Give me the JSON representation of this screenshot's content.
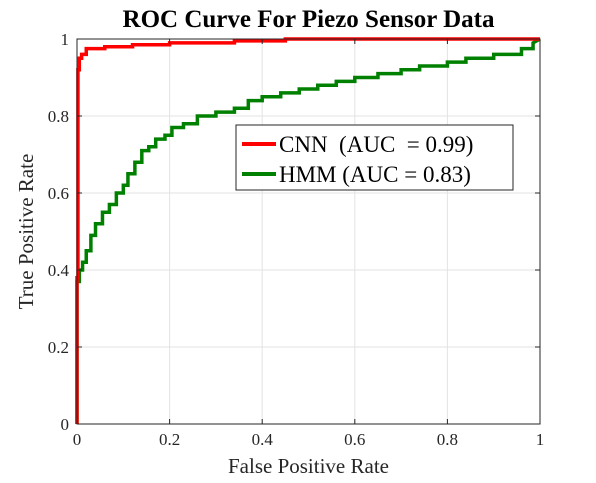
{
  "chart_data": {
    "type": "line",
    "title": "ROC Curve For Piezo Sensor Data",
    "xlabel": "False Positive Rate",
    "ylabel": "True Positive Rate",
    "xlim": [
      0,
      1
    ],
    "ylim": [
      0,
      1
    ],
    "xticks": [
      0,
      0.2,
      0.4,
      0.6,
      0.8,
      1
    ],
    "xtick_labels": [
      "0",
      "0.2",
      "0.4",
      "0.6",
      "0.8",
      "1"
    ],
    "yticks": [
      0,
      0.2,
      0.4,
      0.6,
      0.8,
      1
    ],
    "ytick_labels": [
      "0",
      "0.2",
      "0.4",
      "0.6",
      "0.8",
      "1"
    ],
    "grid": true,
    "legend_position": "top-right",
    "series": [
      {
        "name": "CNN  (AUC  = 0.99)",
        "color": "#ff0000",
        "x": [
          0,
          0,
          0.002,
          0.002,
          0.005,
          0.005,
          0.01,
          0.01,
          0.02,
          0.02,
          0.06,
          0.06,
          0.12,
          0.12,
          0.2,
          0.2,
          0.34,
          0.34,
          0.45,
          0.45,
          0.6,
          0.8,
          1.0
        ],
        "y": [
          0,
          0.38,
          0.38,
          0.92,
          0.92,
          0.95,
          0.95,
          0.96,
          0.96,
          0.975,
          0.975,
          0.98,
          0.98,
          0.985,
          0.985,
          0.99,
          0.99,
          0.995,
          0.995,
          1.0,
          1.0,
          1.0,
          1.0
        ]
      },
      {
        "name": "HMM (AUC = 0.83)",
        "color": "#008000",
        "x": [
          0,
          0,
          0.005,
          0.005,
          0.012,
          0.012,
          0.02,
          0.02,
          0.03,
          0.03,
          0.04,
          0.04,
          0.055,
          0.055,
          0.07,
          0.07,
          0.085,
          0.085,
          0.1,
          0.1,
          0.11,
          0.11,
          0.125,
          0.125,
          0.14,
          0.14,
          0.155,
          0.155,
          0.17,
          0.17,
          0.19,
          0.19,
          0.205,
          0.205,
          0.23,
          0.23,
          0.26,
          0.26,
          0.3,
          0.3,
          0.34,
          0.34,
          0.37,
          0.37,
          0.4,
          0.4,
          0.44,
          0.44,
          0.48,
          0.48,
          0.52,
          0.52,
          0.56,
          0.56,
          0.6,
          0.6,
          0.65,
          0.65,
          0.7,
          0.7,
          0.74,
          0.74,
          0.8,
          0.8,
          0.84,
          0.84,
          0.9,
          0.9,
          0.96,
          0.96,
          0.985,
          0.985,
          1.0
        ],
        "y": [
          0,
          0.37,
          0.37,
          0.4,
          0.4,
          0.42,
          0.42,
          0.45,
          0.45,
          0.49,
          0.49,
          0.52,
          0.52,
          0.55,
          0.55,
          0.57,
          0.57,
          0.6,
          0.6,
          0.62,
          0.62,
          0.65,
          0.65,
          0.68,
          0.68,
          0.71,
          0.71,
          0.72,
          0.72,
          0.74,
          0.74,
          0.75,
          0.75,
          0.77,
          0.77,
          0.78,
          0.78,
          0.8,
          0.8,
          0.81,
          0.81,
          0.82,
          0.82,
          0.84,
          0.84,
          0.85,
          0.85,
          0.86,
          0.86,
          0.87,
          0.87,
          0.88,
          0.88,
          0.89,
          0.89,
          0.9,
          0.9,
          0.91,
          0.91,
          0.92,
          0.92,
          0.93,
          0.93,
          0.94,
          0.94,
          0.95,
          0.95,
          0.96,
          0.96,
          0.975,
          0.975,
          0.99,
          1.0
        ]
      }
    ]
  }
}
